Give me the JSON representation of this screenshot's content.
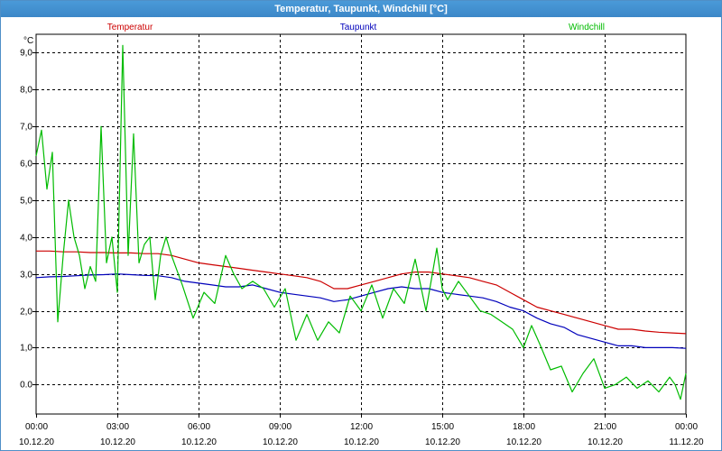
{
  "window": {
    "title": "Temperatur, Taupunkt, Windchill [°C]"
  },
  "chart_data": {
    "type": "line",
    "title": "Temperatur, Taupunkt, Windchill [°C]",
    "ylabel": "°C",
    "ylim": [
      -0.8,
      9.5
    ],
    "xlim": [
      0,
      24
    ],
    "grid": true,
    "legend_position": "top",
    "y_ticks": [
      0.0,
      1.0,
      2.0,
      3.0,
      4.0,
      5.0,
      6.0,
      7.0,
      8.0,
      9.0
    ],
    "y_tick_labels": [
      "0.0",
      "1,0",
      "2,0",
      "3,0",
      "4,0",
      "5,0",
      "6,0",
      "7,0",
      "8,0",
      "9,0"
    ],
    "x_ticks": [
      0,
      3,
      6,
      9,
      12,
      15,
      18,
      21,
      24
    ],
    "x_tick_times": [
      "00:00",
      "03:00",
      "06:00",
      "09:00",
      "12:00",
      "15:00",
      "18:00",
      "21:00",
      "00:00"
    ],
    "x_tick_dates": [
      "10.12.20",
      "10.12.20",
      "10.12.20",
      "10.12.20",
      "10.12.20",
      "10.12.20",
      "10.12.20",
      "10.12.20",
      "11.12.20"
    ],
    "series": [
      {
        "name": "Temperatur",
        "color": "#cc0000",
        "x": [
          0,
          0.5,
          1,
          1.5,
          2,
          2.5,
          3,
          3.5,
          4,
          4.5,
          5,
          5.5,
          6,
          6.5,
          7,
          7.5,
          8,
          8.5,
          9,
          9.5,
          10,
          10.5,
          11,
          11.5,
          12,
          12.5,
          13,
          13.5,
          14,
          14.5,
          15,
          15.5,
          16,
          16.5,
          17,
          17.5,
          18,
          18.5,
          19,
          19.5,
          20,
          20.5,
          21,
          21.5,
          22,
          22.5,
          23,
          23.5,
          24
        ],
        "values": [
          3.62,
          3.62,
          3.6,
          3.6,
          3.58,
          3.58,
          3.57,
          3.57,
          3.55,
          3.55,
          3.5,
          3.4,
          3.3,
          3.25,
          3.2,
          3.15,
          3.1,
          3.05,
          3.0,
          2.95,
          2.9,
          2.8,
          2.6,
          2.6,
          2.7,
          2.8,
          2.9,
          3.0,
          3.05,
          3.05,
          3.0,
          2.95,
          2.9,
          2.8,
          2.7,
          2.5,
          2.3,
          2.1,
          2.0,
          1.9,
          1.8,
          1.7,
          1.6,
          1.5,
          1.5,
          1.45,
          1.42,
          1.4,
          1.38
        ]
      },
      {
        "name": "Taupunkt",
        "color": "#0000bb",
        "x": [
          0,
          0.5,
          1,
          1.5,
          2,
          2.5,
          3,
          3.5,
          4,
          4.5,
          5,
          5.5,
          6,
          6.5,
          7,
          7.5,
          8,
          8.5,
          9,
          9.5,
          10,
          10.5,
          11,
          11.5,
          12,
          12.5,
          13,
          13.5,
          14,
          14.5,
          15,
          15.5,
          16,
          16.5,
          17,
          17.5,
          18,
          18.5,
          19,
          19.5,
          20,
          20.5,
          21,
          21.5,
          22,
          22.5,
          23,
          23.5,
          24
        ],
        "values": [
          2.9,
          2.92,
          2.93,
          2.95,
          2.97,
          2.98,
          3.0,
          2.98,
          2.96,
          2.95,
          2.9,
          2.8,
          2.75,
          2.7,
          2.65,
          2.65,
          2.7,
          2.6,
          2.5,
          2.45,
          2.4,
          2.35,
          2.25,
          2.3,
          2.4,
          2.5,
          2.6,
          2.65,
          2.6,
          2.6,
          2.5,
          2.45,
          2.4,
          2.35,
          2.25,
          2.1,
          2.0,
          1.8,
          1.65,
          1.55,
          1.35,
          1.25,
          1.15,
          1.05,
          1.05,
          1.0,
          1.0,
          1.0,
          0.98
        ]
      },
      {
        "name": "Windchill",
        "color": "#00bb00",
        "x": [
          0,
          0.2,
          0.4,
          0.6,
          0.8,
          1.0,
          1.2,
          1.4,
          1.6,
          1.8,
          2.0,
          2.2,
          2.4,
          2.6,
          2.8,
          3.0,
          3.2,
          3.4,
          3.6,
          3.8,
          4.0,
          4.2,
          4.4,
          4.6,
          4.8,
          5.0,
          5.4,
          5.8,
          6.2,
          6.6,
          7.0,
          7.3,
          7.6,
          8.0,
          8.4,
          8.8,
          9.2,
          9.6,
          10.0,
          10.4,
          10.8,
          11.2,
          11.6,
          12.0,
          12.4,
          12.8,
          13.2,
          13.6,
          14.0,
          14.4,
          14.8,
          15.0,
          15.2,
          15.6,
          16.0,
          16.4,
          16.8,
          17.2,
          17.6,
          18.0,
          18.3,
          18.6,
          19.0,
          19.4,
          19.8,
          20.2,
          20.6,
          21.0,
          21.4,
          21.8,
          22.2,
          22.6,
          23.0,
          23.4,
          23.6,
          23.8,
          24.0
        ],
        "values": [
          6.2,
          6.9,
          5.3,
          6.3,
          1.7,
          3.5,
          5.0,
          4.0,
          3.5,
          2.6,
          3.2,
          2.8,
          7.0,
          3.3,
          4.0,
          2.5,
          9.2,
          3.5,
          6.8,
          3.3,
          3.8,
          4.0,
          2.3,
          3.5,
          4.0,
          3.5,
          2.7,
          1.8,
          2.5,
          2.2,
          3.5,
          3.0,
          2.6,
          2.8,
          2.6,
          2.1,
          2.6,
          1.2,
          1.9,
          1.2,
          1.7,
          1.4,
          2.4,
          2.0,
          2.7,
          1.8,
          2.6,
          2.2,
          3.4,
          2.0,
          3.7,
          2.6,
          2.3,
          2.8,
          2.4,
          2.0,
          1.9,
          1.7,
          1.5,
          1.0,
          1.6,
          1.1,
          0.4,
          0.5,
          -0.2,
          0.3,
          0.7,
          -0.1,
          0.0,
          0.2,
          -0.1,
          0.1,
          -0.2,
          0.2,
          0.0,
          -0.4,
          0.3
        ]
      }
    ]
  }
}
